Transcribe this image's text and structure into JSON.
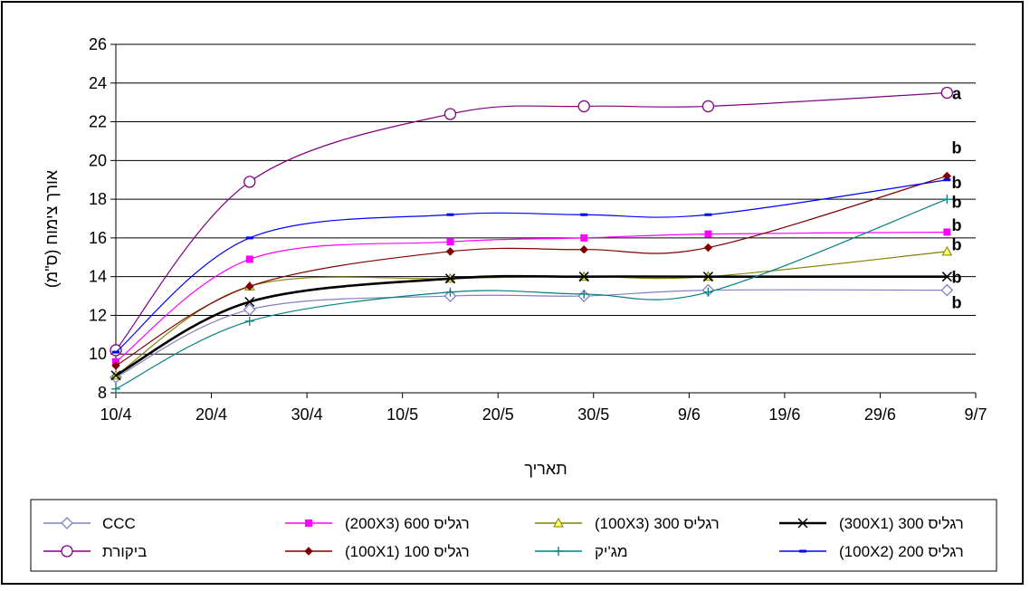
{
  "chart_data": {
    "type": "line",
    "xlabel": "תאריך",
    "ylabel": "אורך צימוח (ס\"מ)",
    "ylim": [
      8,
      26
    ],
    "yticks": [
      8,
      10,
      12,
      14,
      16,
      18,
      20,
      22,
      24,
      26
    ],
    "xlim": [
      "2008-04-10",
      "2008-07-09"
    ],
    "xticks": [
      "10/4",
      "20/4",
      "30/4",
      "10/5",
      "20/5",
      "30/5",
      "9/6",
      "19/6",
      "29/6",
      "9/7"
    ],
    "x": [
      "2008-04-10",
      "2008-04-24",
      "2008-05-15",
      "2008-05-29",
      "2008-06-11",
      "2008-07-06"
    ],
    "grid": "horizontal",
    "legend_position": "bottom",
    "series": [
      {
        "name": "CCC",
        "color": "#8080c0",
        "marker": "diamond-open",
        "values": [
          8.8,
          12.3,
          13.0,
          13.0,
          13.3,
          13.3
        ]
      },
      {
        "name": "רגליס 600 (200X3)",
        "color": "#ff00ff",
        "marker": "square",
        "values": [
          9.6,
          14.9,
          15.8,
          16.0,
          16.2,
          16.3
        ]
      },
      {
        "name": "רגליס 300 (100X3)",
        "color": "#808000",
        "marker": "triangle",
        "values": [
          8.9,
          13.5,
          13.9,
          14.0,
          14.0,
          15.3
        ]
      },
      {
        "name": "רגליס 300 (300X1)",
        "color": "#000000",
        "marker": "x",
        "bold": true,
        "values": [
          8.9,
          12.7,
          13.9,
          14.0,
          14.0,
          14.0
        ]
      },
      {
        "name": "ביקורת",
        "color": "#800080",
        "marker": "circle-open",
        "values": [
          10.2,
          18.9,
          22.4,
          22.8,
          22.8,
          23.5
        ]
      },
      {
        "name": "רגליס 100 (100X1)",
        "color": "#800000",
        "marker": "diamond",
        "values": [
          9.4,
          13.5,
          15.3,
          15.4,
          15.5,
          19.2
        ]
      },
      {
        "name": "מג'יק",
        "color": "#008080",
        "marker": "plus",
        "values": [
          8.2,
          11.7,
          13.2,
          13.1,
          13.2,
          18.0
        ]
      },
      {
        "name": "רגליס 200 (100X2)",
        "color": "#0000ff",
        "marker": "dash",
        "values": [
          10.1,
          16.0,
          17.2,
          17.2,
          17.2,
          19.0
        ]
      }
    ],
    "annotations": [
      {
        "text": "a",
        "y": 23.5
      },
      {
        "text": "b",
        "y": 20.7
      },
      {
        "text": "b",
        "y": 18.9
      },
      {
        "text": "b",
        "y": 17.9
      },
      {
        "text": "b",
        "y": 16.7
      },
      {
        "text": "b",
        "y": 15.7
      },
      {
        "text": "b",
        "y": 14.0
      },
      {
        "text": "b",
        "y": 12.7
      }
    ]
  }
}
